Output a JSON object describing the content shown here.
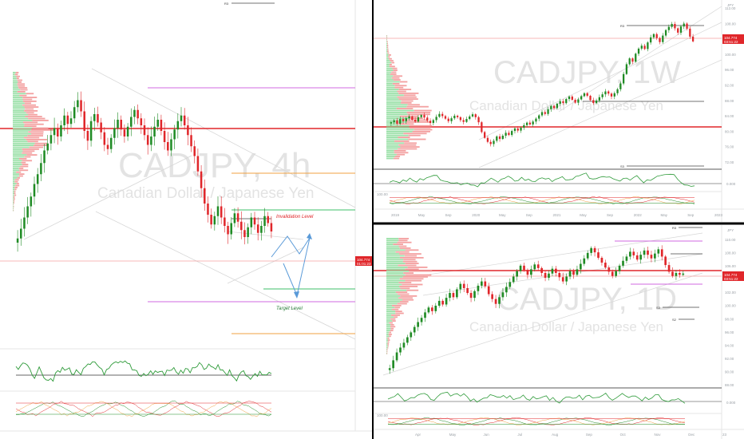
{
  "colors": {
    "up": "#1f8b24",
    "down": "#e0262a",
    "accent_red": "#e0262a",
    "grid": "#f1f1f1",
    "divider": "#000000",
    "level_purple": "#d06ae0",
    "level_orange": "#f0a040",
    "level_green": "#3cbf6a",
    "projection_blue": "#5a9ad8"
  },
  "panels": {
    "left": {
      "symbol": "CADJPY, 4h",
      "name": "Canadian Dollar / Japanese Yen",
      "invalidation_label": "Invalidation Level",
      "target_label": "Target Level",
      "r3_label": "R3",
      "price_badge": "104.774",
      "price_badge_sub": "01:01:23"
    },
    "top_right": {
      "symbol": "CADJPY, 1W",
      "name": "Canadian Dollar / Japanese Yen",
      "currency": "JPY",
      "r3_label": "R3",
      "s3_label": "S3",
      "price_badge": "104.774",
      "price_badge_sub": "03:51:22",
      "y_ticks": [
        "112.00",
        "108.00",
        "104.00",
        "100.00",
        "96.00",
        "92.00",
        "88.00",
        "84.00",
        "80.00",
        "76.00",
        "72.00"
      ],
      "osc_tick": "0.000",
      "osc_tick2": "100.00",
      "x_ticks": [
        "2019",
        "May",
        "Sep",
        "2020",
        "May",
        "Sep",
        "2021",
        "May",
        "Sep",
        "2022",
        "May",
        "Sep",
        "2023"
      ]
    },
    "bottom_right": {
      "symbol": "CADJPY, 1D",
      "name": "Canadian Dollar / Japanese Yen",
      "currency": "JPY",
      "r3_label": "R3",
      "s3_label": "S3",
      "s2_label": "S2",
      "price_badge": "104.774",
      "price_badge_sub": "03:51:22",
      "y_ticks": [
        "110.00",
        "108.00",
        "106.00",
        "104.00",
        "102.00",
        "100.00",
        "98.00",
        "96.00",
        "94.00",
        "92.00",
        "90.00",
        "88.00"
      ],
      "osc_tick": "0.000",
      "osc_tick2": "100.00",
      "x_ticks": [
        "Apr",
        "May",
        "Jun",
        "Jul",
        "Aug",
        "Sep",
        "Oct",
        "Nov",
        "Dec",
        "23"
      ]
    }
  },
  "chart_data": [
    {
      "type": "candlestick",
      "title": "CADJPY, 4h",
      "subtitle": "Canadian Dollar / Japanese Yen",
      "closes": [
        99.5,
        100.2,
        101.0,
        101.8,
        102.5,
        103.4,
        104.1,
        104.9,
        105.8,
        106.3,
        106.9,
        107.4,
        106.8,
        107.6,
        108.3,
        107.7,
        108.1,
        108.9,
        109.4,
        108.6,
        107.2,
        106.5,
        107.9,
        108.4,
        107.8,
        107.1,
        106.2,
        105.9,
        106.7,
        107.4,
        108.0,
        107.3,
        106.8,
        107.5,
        108.2,
        108.7,
        108.1,
        107.6,
        106.9,
        106.2,
        106.8,
        107.5,
        108.0,
        107.2,
        106.4,
        105.8,
        106.6,
        107.3,
        107.9,
        108.3,
        107.6,
        106.9,
        106.1,
        105.4,
        104.3,
        103.1,
        102.0,
        101.2,
        100.5,
        101.1,
        101.8,
        101.0,
        100.4,
        99.8,
        100.6,
        101.3,
        100.7,
        100.1,
        99.6,
        100.3,
        101.0,
        100.5,
        99.9,
        100.4,
        101.1,
        100.6,
        100.0
      ],
      "invalidation_level": 102.4,
      "target_level": 98.6,
      "levels_purple": [
        110.9,
        98.4
      ],
      "levels_orange": [
        106.2,
        96.7
      ],
      "level_green": [
        103.0,
        99.3
      ],
      "level_red": 108.7
    },
    {
      "type": "candlestick",
      "title": "CADJPY, 1W",
      "subtitle": "Canadian Dollar / Japanese Yen",
      "ylim": [
        70,
        114
      ],
      "closes": [
        82.5,
        83.0,
        82.1,
        83.4,
        82.8,
        83.6,
        84.1,
        83.2,
        82.7,
        83.9,
        84.5,
        83.8,
        82.9,
        82.3,
        83.1,
        84.0,
        84.8,
        84.2,
        83.5,
        82.8,
        83.6,
        84.3,
        83.9,
        83.1,
        82.6,
        83.4,
        84.1,
        84.7,
        83.9,
        82.5,
        79.8,
        78.2,
        77.1,
        76.5,
        77.4,
        78.6,
        77.9,
        78.8,
        79.6,
        79.0,
        80.1,
        80.8,
        80.2,
        81.0,
        81.7,
        82.4,
        81.9,
        82.7,
        83.5,
        84.4,
        85.3,
        84.8,
        86.1,
        87.0,
        86.4,
        87.6,
        88.3,
        87.8,
        88.9,
        89.6,
        88.7,
        87.9,
        88.8,
        89.7,
        90.5,
        89.8,
        88.6,
        87.8,
        88.5,
        89.4,
        90.2,
        91.0,
        90.4,
        89.6,
        90.5,
        91.6,
        93.2,
        95.8,
        98.5,
        100.1,
        99.2,
        101.4,
        102.8,
        103.6,
        102.7,
        104.5,
        105.9,
        106.8,
        105.7,
        104.6,
        106.4,
        107.9,
        108.8,
        109.6,
        108.4,
        107.2,
        108.9,
        109.7,
        108.3,
        106.1,
        104.8
      ],
      "r3_level": 108.0,
      "s3_level": 72.4,
      "level_black": 86.0,
      "level_red_bold": 80.6
    },
    {
      "type": "candlestick",
      "title": "CADJPY, 1D",
      "subtitle": "Canadian Dollar / Japanese Yen",
      "ylim": [
        87,
        112
      ],
      "closes": [
        89.2,
        90.5,
        91.8,
        92.6,
        93.4,
        94.3,
        95.1,
        96.0,
        96.8,
        97.5,
        98.4,
        99.2,
        98.6,
        99.5,
        100.3,
        99.7,
        100.8,
        101.6,
        100.9,
        102.2,
        103.1,
        102.4,
        101.6,
        100.8,
        101.9,
        102.8,
        103.5,
        102.7,
        101.4,
        100.6,
        99.8,
        100.9,
        101.7,
        102.6,
        103.4,
        104.3,
        105.2,
        106.1,
        105.4,
        104.6,
        105.5,
        106.3,
        105.7,
        104.9,
        104.1,
        104.8,
        105.6,
        104.9,
        104.2,
        103.5,
        104.3,
        105.2,
        104.6,
        105.5,
        106.4,
        107.3,
        108.2,
        109.0,
        108.3,
        107.4,
        106.6,
        105.8,
        105.1,
        104.4,
        105.2,
        106.1,
        106.9,
        107.6,
        108.4,
        107.8,
        107.1,
        107.9,
        108.6,
        107.9,
        107.3,
        108.1,
        108.8,
        107.6,
        106.2,
        105.1,
        104.4,
        104.9,
        104.6,
        104.8
      ],
      "r3_level": 110.4,
      "s3_level": 99.8,
      "s2_level": 98.3,
      "level_red_bold": 105.4
    }
  ]
}
